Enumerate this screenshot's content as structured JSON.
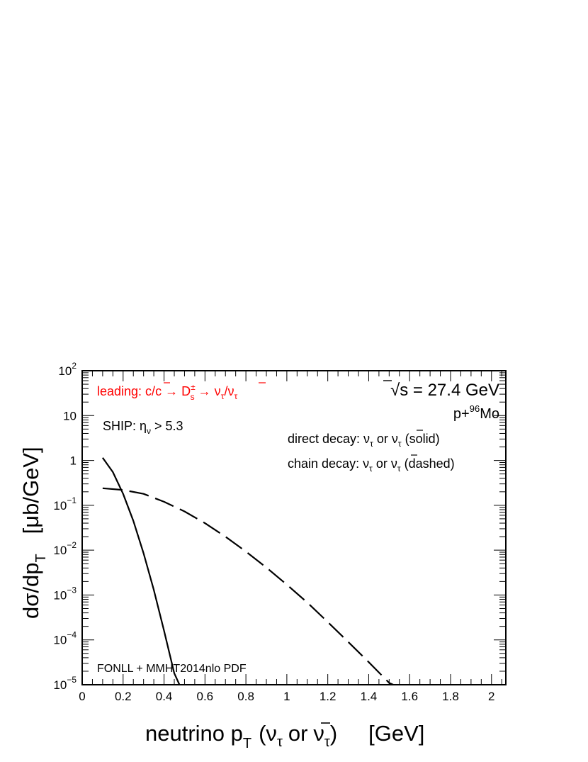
{
  "chart_data": {
    "type": "line",
    "xlabel": {
      "main": "neutrino p",
      "sub": "T",
      "paren": "(ν",
      "paren_sub": "τ",
      "or": "or",
      "nubar": "ν",
      "nubar_sub": "τ",
      "close": ")",
      "unit": "[GeV]"
    },
    "ylabel": {
      "main": "dσ/dp",
      "sub": "T",
      "unit": "[μb/GeV]"
    },
    "xlim": [
      0,
      2.07
    ],
    "ylim": [
      1e-05,
      100
    ],
    "y_scale": "log",
    "x_ticks": [
      {
        "v": 0,
        "label": "0"
      },
      {
        "v": 0.2,
        "label": "0.2"
      },
      {
        "v": 0.4,
        "label": "0.4"
      },
      {
        "v": 0.6,
        "label": "0.6"
      },
      {
        "v": 0.8,
        "label": "0.8"
      },
      {
        "v": 1.0,
        "label": "1"
      },
      {
        "v": 1.2,
        "label": "1.2"
      },
      {
        "v": 1.4,
        "label": "1.4"
      },
      {
        "v": 1.6,
        "label": "1.6"
      },
      {
        "v": 1.8,
        "label": "1.8"
      },
      {
        "v": 2.0,
        "label": "2"
      }
    ],
    "y_ticks": [
      {
        "v": 100,
        "base": "10",
        "exp": "2"
      },
      {
        "v": 10,
        "base": "10",
        "exp": ""
      },
      {
        "v": 1,
        "base": "1",
        "exp": ""
      },
      {
        "v": 0.1,
        "base": "10",
        "exp": "−1"
      },
      {
        "v": 0.01,
        "base": "10",
        "exp": "−2"
      },
      {
        "v": 0.001,
        "base": "10",
        "exp": "−3"
      },
      {
        "v": 0.0001,
        "base": "10",
        "exp": "−4"
      },
      {
        "v": 1e-05,
        "base": "10",
        "exp": "−5"
      }
    ],
    "series": [
      {
        "style": "solid",
        "x": [
          0.1,
          0.15,
          0.2,
          0.25,
          0.3,
          0.35,
          0.4,
          0.45,
          0.48
        ],
        "y": [
          1.15,
          0.55,
          0.18,
          0.045,
          0.0085,
          0.0013,
          0.00016,
          1.8e-05,
          9e-06
        ]
      },
      {
        "style": "dashed",
        "x": [
          0.1,
          0.2,
          0.3,
          0.4,
          0.5,
          0.6,
          0.7,
          0.8,
          0.9,
          1.0,
          1.1,
          1.2,
          1.3,
          1.4,
          1.5,
          1.52
        ],
        "y": [
          0.24,
          0.22,
          0.18,
          0.12,
          0.073,
          0.04,
          0.02,
          0.0093,
          0.0041,
          0.0017,
          0.00068,
          0.00025,
          9e-05,
          3.2e-05,
          1.1e-05,
          1e-05
        ]
      }
    ],
    "annotations": {
      "leading": {
        "prefix": "leading: c/",
        "cbar": "c",
        "arrow1": " → D",
        "ds_sup": "±",
        "ds_sub": "s",
        "arrow2": " → ν",
        "nu_sub": "τ",
        "slash": "/",
        "nubar": "ν",
        "nubar_sub": "τ"
      },
      "energy": {
        "root": "√",
        "s": "s",
        "rest": " = 27.4 GeV"
      },
      "system": {
        "pre": "p+",
        "sup": "96",
        "post": "Mo"
      },
      "ship": {
        "pre": "SHIP: η",
        "sub": "ν",
        "post": " > 5.3"
      },
      "direct": {
        "pre": "direct decay: ν",
        "sub1": "τ",
        "mid": " or ",
        "nubar": "ν",
        "sub2": "τ",
        "post": " (solid)"
      },
      "chain": {
        "pre": "chain decay: ν",
        "sub1": "τ",
        "mid": " or ",
        "nubar": "ν",
        "sub2": "τ",
        "post": " (dashed)"
      },
      "fonll": "FONLL + MMHT2014nlo PDF"
    }
  }
}
